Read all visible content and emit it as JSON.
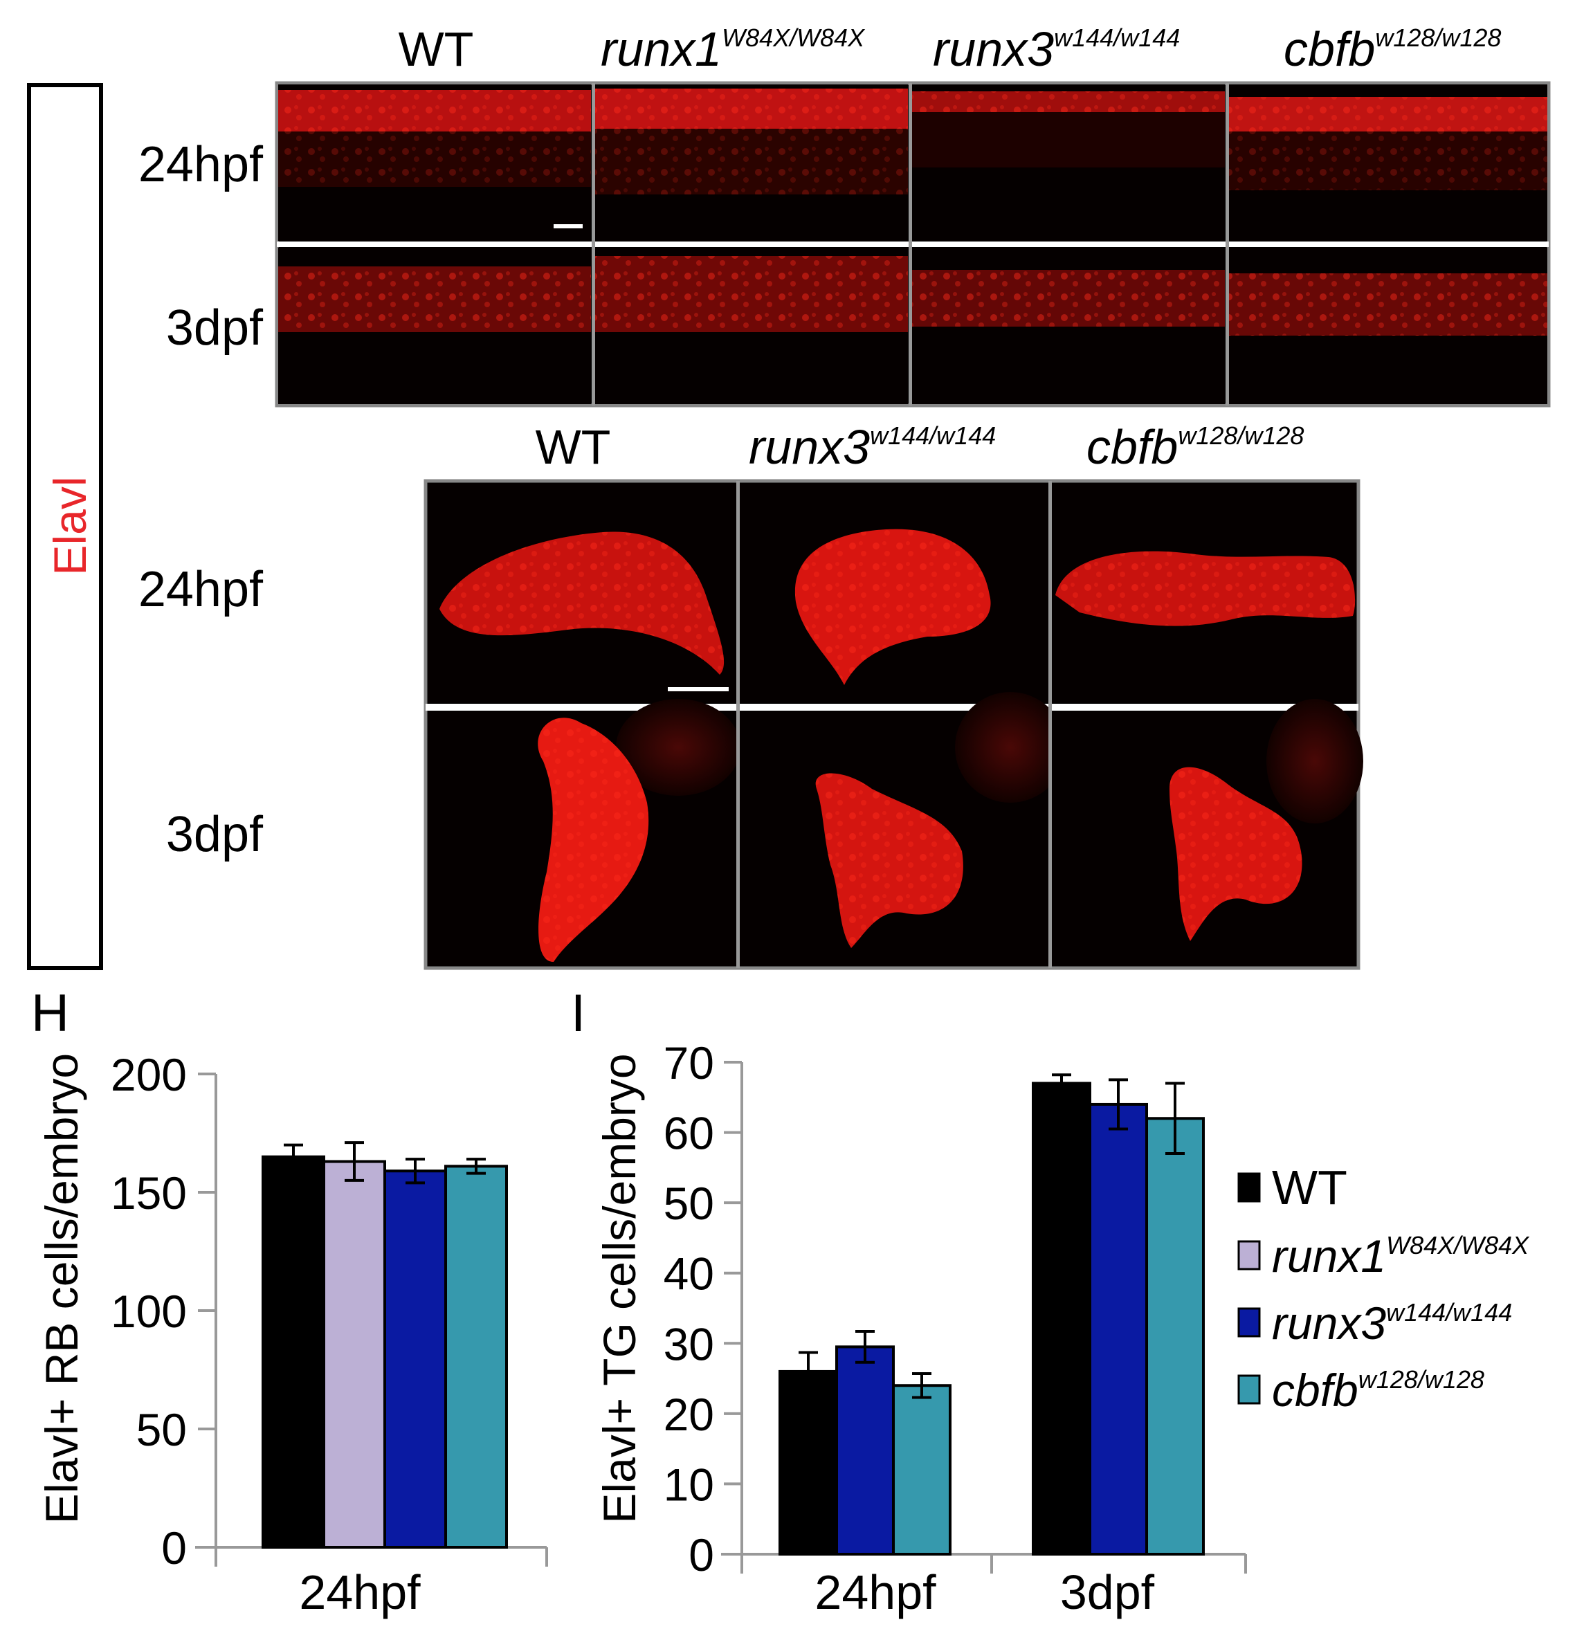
{
  "side_label": "Elavl",
  "top_panel": {
    "columns": [
      {
        "gene": "WT",
        "allele": ""
      },
      {
        "gene": "runx1",
        "allele": "W84X/W84X"
      },
      {
        "gene": "runx3",
        "allele": "w144/w144"
      },
      {
        "gene": "cbfb",
        "allele": "w128/w128"
      }
    ],
    "rows": [
      "24hpf",
      "3dpf"
    ]
  },
  "middle_panel": {
    "columns": [
      {
        "gene": "WT",
        "allele": ""
      },
      {
        "gene": "runx3",
        "allele": "w144/w144"
      },
      {
        "gene": "cbfb",
        "allele": "w128/w128"
      }
    ],
    "rows": [
      "24hpf",
      "3dpf"
    ]
  },
  "panel_letters": {
    "h": "H",
    "i": "I"
  },
  "colors": {
    "WT": "#000000",
    "runx1": "#bcb0d5",
    "runx3": "#0a1aa2",
    "cbfb": "#3699ad",
    "stain": "#ff1a14",
    "side_label": "#e8262a"
  },
  "legend": [
    {
      "key": "WT",
      "gene": "WT",
      "allele": ""
    },
    {
      "key": "runx1",
      "gene": "runx1",
      "allele": "W84X/W84X"
    },
    {
      "key": "runx3",
      "gene": "runx3",
      "allele": "w144/w144"
    },
    {
      "key": "cbfb",
      "gene": "cbfb",
      "allele": "w128/w128"
    }
  ],
  "chart_data": [
    {
      "type": "bar",
      "panel": "H",
      "ylabel": "Elavl+ RB cells/embryo",
      "ylim": [
        0,
        200
      ],
      "yticks": [
        0,
        50,
        100,
        150,
        200
      ],
      "categories": [
        "24hpf"
      ],
      "series": [
        {
          "key": "WT",
          "values": [
            165
          ],
          "errors": [
            5
          ]
        },
        {
          "key": "runx1",
          "values": [
            163
          ],
          "errors": [
            8
          ]
        },
        {
          "key": "runx3",
          "values": [
            159
          ],
          "errors": [
            5
          ]
        },
        {
          "key": "cbfb",
          "values": [
            161
          ],
          "errors": [
            3
          ]
        }
      ]
    },
    {
      "type": "bar",
      "panel": "I",
      "ylabel": "Elavl+ TG cells/embryo",
      "ylim": [
        0,
        70
      ],
      "yticks": [
        0,
        10,
        20,
        30,
        40,
        50,
        60,
        70
      ],
      "categories": [
        "24hpf",
        "3dpf"
      ],
      "series": [
        {
          "key": "WT",
          "values": [
            26,
            67
          ],
          "errors": [
            2.7,
            1.2
          ]
        },
        {
          "key": "runx3",
          "values": [
            29.5,
            64
          ],
          "errors": [
            2.2,
            3.5
          ]
        },
        {
          "key": "cbfb",
          "values": [
            24,
            62
          ],
          "errors": [
            1.7,
            5
          ]
        }
      ]
    }
  ]
}
